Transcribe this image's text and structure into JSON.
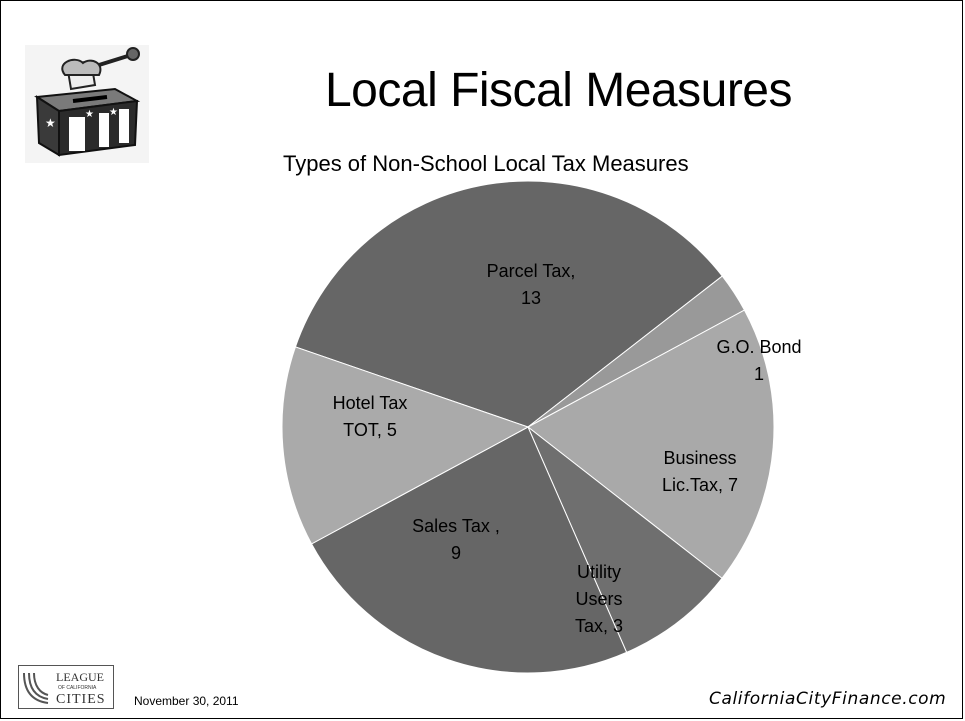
{
  "slide": {
    "title": "Local Fiscal Measures",
    "date": "November 30, 2011",
    "site": "CaliforniaCityFinance.com",
    "logo_text": [
      "LEAGUE",
      "OF CALIFORNIA",
      "CITIES"
    ]
  },
  "chart_data": {
    "type": "pie",
    "title": "Types of Non-School Local Tax Measures",
    "slices": [
      {
        "name": "Parcel Tax",
        "value": 13,
        "label": [
          "Parcel Tax,",
          "13"
        ],
        "color": "#666666"
      },
      {
        "name": "G.O. Bond",
        "value": 1,
        "label": [
          "G.O. Bond",
          "1"
        ],
        "color": "#999999"
      },
      {
        "name": "Business Lic.Tax",
        "value": 7,
        "label": [
          "Business",
          "Lic.Tax,  7"
        ],
        "color": "#a9a9a9"
      },
      {
        "name": "Utility Users Tax",
        "value": 3,
        "label": [
          "Utility",
          "Users",
          "Tax,  3"
        ],
        "color": "#6f6f6f"
      },
      {
        "name": "Sales Tax",
        "value": 9,
        "label": [
          "Sales Tax ,",
          "9"
        ],
        "color": "#666666"
      },
      {
        "name": "Hotel Tax TOT",
        "value": 5,
        "label": [
          "Hotel Tax",
          "TOT,  5"
        ],
        "color": "#aaaaaa"
      }
    ]
  }
}
